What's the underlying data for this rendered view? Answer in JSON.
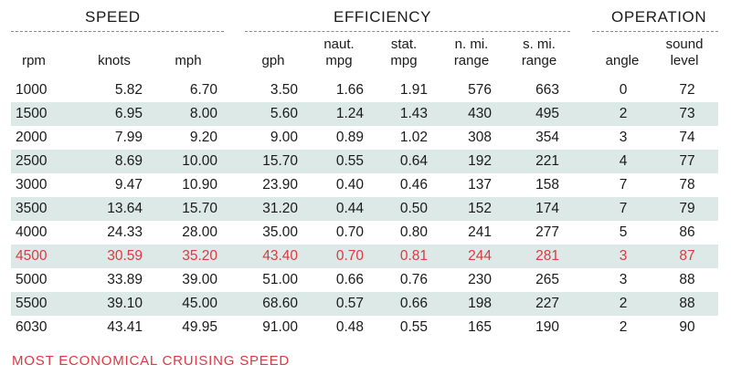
{
  "groups": {
    "speed": "SPEED",
    "efficiency": "EFFICIENCY",
    "operation": "OPERATION"
  },
  "headers": {
    "rpm": [
      "",
      "rpm"
    ],
    "knots": [
      "",
      "knots"
    ],
    "mph": [
      "",
      "mph"
    ],
    "gph": [
      "",
      "gph"
    ],
    "naut_mpg": [
      "naut.",
      "mpg"
    ],
    "stat_mpg": [
      "stat.",
      "mpg"
    ],
    "n_mi_range": [
      "n. mi.",
      "range"
    ],
    "s_mi_range": [
      "s. mi.",
      "range"
    ],
    "angle": [
      "",
      "angle"
    ],
    "sound_level": [
      "sound",
      "level"
    ]
  },
  "rows": [
    [
      "1000",
      "5.82",
      "6.70",
      "3.50",
      "1.66",
      "1.91",
      "576",
      "663",
      "0",
      "72"
    ],
    [
      "1500",
      "6.95",
      "8.00",
      "5.60",
      "1.24",
      "1.43",
      "430",
      "495",
      "2",
      "73"
    ],
    [
      "2000",
      "7.99",
      "9.20",
      "9.00",
      "0.89",
      "1.02",
      "308",
      "354",
      "3",
      "74"
    ],
    [
      "2500",
      "8.69",
      "10.00",
      "15.70",
      "0.55",
      "0.64",
      "192",
      "221",
      "4",
      "77"
    ],
    [
      "3000",
      "9.47",
      "10.90",
      "23.90",
      "0.40",
      "0.46",
      "137",
      "158",
      "7",
      "78"
    ],
    [
      "3500",
      "13.64",
      "15.70",
      "31.20",
      "0.44",
      "0.50",
      "152",
      "174",
      "7",
      "79"
    ],
    [
      "4000",
      "24.33",
      "28.00",
      "35.00",
      "0.70",
      "0.80",
      "241",
      "277",
      "5",
      "86"
    ],
    [
      "4500",
      "30.59",
      "35.20",
      "43.40",
      "0.70",
      "0.81",
      "244",
      "281",
      "3",
      "87"
    ],
    [
      "5000",
      "33.89",
      "39.00",
      "51.00",
      "0.66",
      "0.76",
      "230",
      "265",
      "3",
      "88"
    ],
    [
      "5500",
      "39.10",
      "45.00",
      "68.60",
      "0.57",
      "0.66",
      "198",
      "227",
      "2",
      "88"
    ],
    [
      "6030",
      "43.41",
      "49.95",
      "91.00",
      "0.48",
      "0.55",
      "165",
      "190",
      "2",
      "90"
    ]
  ],
  "highlight_row": 7,
  "footnote": "MOST ECONOMICAL CRUISING SPEED",
  "colors": {
    "highlight": "#d93a43",
    "shaded_row": "#dde9e6",
    "text": "#1a1a1a"
  }
}
